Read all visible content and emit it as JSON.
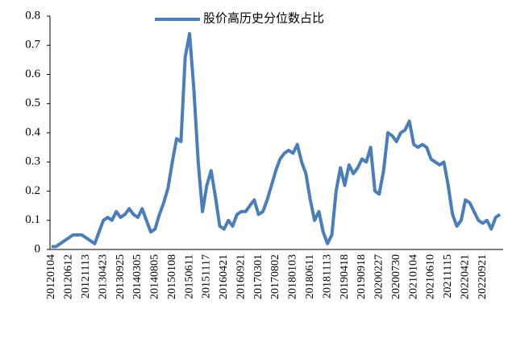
{
  "chart_data": {
    "type": "line",
    "categories": [
      "20120104",
      null,
      null,
      null,
      "20120612",
      null,
      null,
      null,
      "20121113",
      null,
      null,
      null,
      "20130423",
      null,
      null,
      null,
      "20130925",
      null,
      null,
      null,
      "20140305",
      null,
      null,
      null,
      "20140805",
      null,
      null,
      null,
      "20150108",
      null,
      null,
      null,
      "20150611",
      null,
      null,
      null,
      "20151117",
      null,
      null,
      null,
      "20160421",
      null,
      null,
      null,
      "20160921",
      null,
      null,
      null,
      "20170301",
      null,
      null,
      null,
      "20170802",
      null,
      null,
      null,
      "20180103",
      null,
      null,
      null,
      "20180611",
      null,
      null,
      null,
      "20181113",
      null,
      null,
      null,
      "20190418",
      null,
      null,
      null,
      "20190918",
      null,
      null,
      null,
      "20200227",
      null,
      null,
      null,
      "20200730",
      null,
      null,
      null,
      "20210104",
      null,
      null,
      null,
      "20210610",
      null,
      null,
      null,
      "20211115",
      null,
      null,
      null,
      "20220421",
      null,
      null,
      null,
      "20220921",
      null,
      null,
      null,
      null
    ],
    "series": [
      {
        "name": "股价高历史分位数占比",
        "color": "#4a7ebb",
        "values": [
          0.01,
          0.01,
          0.02,
          0.03,
          0.04,
          0.05,
          0.05,
          0.05,
          0.04,
          0.03,
          0.02,
          0.06,
          0.1,
          0.11,
          0.1,
          0.13,
          0.11,
          0.12,
          0.14,
          0.12,
          0.11,
          0.14,
          0.1,
          0.06,
          0.07,
          0.12,
          0.16,
          0.21,
          0.3,
          0.38,
          0.37,
          0.66,
          0.74,
          0.55,
          0.3,
          0.13,
          0.22,
          0.27,
          0.18,
          0.08,
          0.07,
          0.1,
          0.08,
          0.12,
          0.13,
          0.13,
          0.15,
          0.17,
          0.12,
          0.13,
          0.17,
          0.22,
          0.27,
          0.31,
          0.33,
          0.34,
          0.33,
          0.36,
          0.3,
          0.26,
          0.17,
          0.1,
          0.13,
          0.06,
          0.02,
          0.05,
          0.2,
          0.28,
          0.22,
          0.29,
          0.26,
          0.28,
          0.31,
          0.3,
          0.35,
          0.2,
          0.19,
          0.27,
          0.4,
          0.39,
          0.37,
          0.4,
          0.41,
          0.44,
          0.36,
          0.35,
          0.36,
          0.35,
          0.31,
          0.3,
          0.29,
          0.3,
          0.22,
          0.12,
          0.08,
          0.1,
          0.17,
          0.16,
          0.13,
          0.1,
          0.09,
          0.1,
          0.07,
          0.11,
          0.12
        ]
      }
    ],
    "ylim": [
      0,
      0.8
    ],
    "yticks": [
      0,
      0.1,
      0.2,
      0.3,
      0.4,
      0.5,
      0.6,
      0.7,
      0.8
    ]
  }
}
